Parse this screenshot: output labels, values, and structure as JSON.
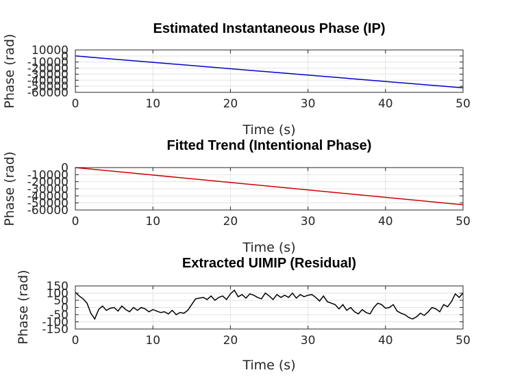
{
  "chart_data": [
    {
      "type": "line",
      "title": "Estimated Instantaneous Phase (IP)",
      "xlabel": "Time (s)",
      "ylabel": "Phase (rad)",
      "xlim": [
        0,
        50
      ],
      "ylim": [
        -60000,
        10000
      ],
      "xticks": [
        0,
        10,
        20,
        30,
        40,
        50
      ],
      "xtick_labels": [
        "0",
        "10",
        "20",
        "30",
        "40",
        "50"
      ],
      "yticks": [
        -60000,
        -50000,
        -40000,
        -30000,
        -20000,
        -10000,
        0,
        10000
      ],
      "ytick_labels": [
        "-60000",
        "-50000",
        "-40000",
        "-30000",
        "-20000",
        "-10000",
        "0",
        "10000"
      ],
      "grid": true,
      "series": [
        {
          "color": "#0000cc",
          "x": [
            0,
            50
          ],
          "y": [
            100,
            -52500
          ]
        }
      ]
    },
    {
      "type": "line",
      "title": "Fitted Trend (Intentional Phase)",
      "xlabel": "Time (s)",
      "ylabel": "Phase (rad)",
      "xlim": [
        0,
        50
      ],
      "ylim": [
        -60000,
        0
      ],
      "xticks": [
        0,
        10,
        20,
        30,
        40,
        50
      ],
      "xtick_labels": [
        "0",
        "10",
        "20",
        "30",
        "40",
        "50"
      ],
      "yticks": [
        -60000,
        -50000,
        -40000,
        -30000,
        -20000,
        -10000,
        0
      ],
      "ytick_labels": [
        "-60000",
        "-50000",
        "-40000",
        "-30000",
        "-20000",
        "-10000",
        "0"
      ],
      "grid": true,
      "series": [
        {
          "color": "#cc0000",
          "x": [
            0,
            50
          ],
          "y": [
            0,
            -52600
          ]
        }
      ]
    },
    {
      "type": "line",
      "title": "Extracted UIMIP (Residual)",
      "xlabel": "Time (s)",
      "ylabel": "Phase (rad)",
      "xlim": [
        0,
        50
      ],
      "ylim": [
        -150,
        150
      ],
      "xticks": [
        0,
        10,
        20,
        30,
        40,
        50
      ],
      "xtick_labels": [
        "0",
        "10",
        "20",
        "30",
        "40",
        "50"
      ],
      "yticks": [
        -150,
        -100,
        -50,
        0,
        50,
        100,
        150
      ],
      "ytick_labels": [
        "-150",
        "-100",
        "-50",
        "0",
        "50",
        "100",
        "150"
      ],
      "grid": true,
      "series": [
        {
          "color": "#000000",
          "x": [
            0,
            0.5,
            1,
            1.5,
            2,
            2.5,
            3,
            3.5,
            4,
            4.5,
            5,
            5.5,
            6,
            6.5,
            7,
            7.5,
            8,
            8.5,
            9,
            9.5,
            10,
            10.5,
            11,
            11.5,
            12,
            12.5,
            13,
            13.5,
            14,
            14.5,
            15,
            15.5,
            16,
            16.5,
            17,
            17.5,
            18,
            18.5,
            19,
            19.5,
            20,
            20.5,
            21,
            21.5,
            22,
            22.5,
            23,
            23.5,
            24,
            24.5,
            25,
            25.5,
            26,
            26.5,
            27,
            27.5,
            28,
            28.5,
            29,
            29.5,
            30,
            30.5,
            31,
            31.5,
            32,
            32.5,
            33,
            33.5,
            34,
            34.5,
            35,
            35.5,
            36,
            36.5,
            37,
            37.5,
            38,
            38.5,
            39,
            39.5,
            40,
            40.5,
            41,
            41.5,
            42,
            42.5,
            43,
            43.5,
            44,
            44.5,
            45,
            45.5,
            46,
            46.5,
            47,
            47.5,
            48,
            48.5,
            49,
            49.5,
            50
          ],
          "y": [
            105,
            80,
            60,
            30,
            -40,
            -80,
            -15,
            10,
            -20,
            -5,
            0,
            -25,
            10,
            -15,
            -30,
            0,
            -20,
            0,
            -10,
            -30,
            -15,
            -25,
            -35,
            -30,
            -45,
            -20,
            -50,
            -35,
            -40,
            -20,
            20,
            60,
            65,
            70,
            55,
            80,
            50,
            70,
            80,
            55,
            95,
            120,
            75,
            90,
            65,
            95,
            85,
            70,
            60,
            100,
            80,
            55,
            90,
            70,
            85,
            70,
            100,
            65,
            90,
            75,
            85,
            90,
            70,
            45,
            80,
            40,
            30,
            20,
            -10,
            20,
            -20,
            0,
            -30,
            -45,
            -15,
            -35,
            -45,
            0,
            30,
            20,
            -5,
            0,
            20,
            -25,
            -40,
            -50,
            -70,
            -80,
            -65,
            -40,
            -55,
            -30,
            0,
            -10,
            -30,
            20,
            5,
            40,
            95,
            70,
            100
          ]
        }
      ]
    }
  ]
}
